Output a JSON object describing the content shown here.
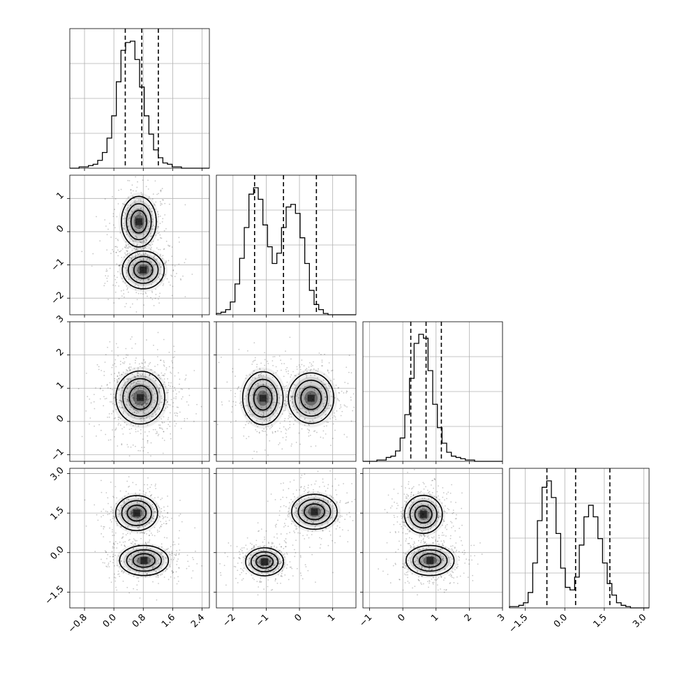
{
  "chart_data": {
    "type": "corner",
    "parameters": [
      {
        "ticks": [
          "−0.8",
          "0.0",
          "0.8",
          "1.6",
          "2.4"
        ],
        "tick_values": [
          -0.8,
          0.0,
          0.8,
          1.6,
          2.4
        ],
        "range": [
          -1.2,
          2.6
        ]
      },
      {
        "ticks": [
          "−2",
          "−1",
          "0",
          "1"
        ],
        "tick_values": [
          -2,
          -1,
          0,
          1
        ],
        "range": [
          -2.5,
          1.7
        ]
      },
      {
        "ticks": [
          "−1",
          "0",
          "1",
          "2",
          "3"
        ],
        "tick_values": [
          -1,
          0,
          1,
          2,
          3
        ],
        "range": [
          -1.2,
          3.0
        ]
      },
      {
        "ticks": [
          "−1.5",
          "0.0",
          "1.5",
          "3.0"
        ],
        "tick_values": [
          -1.5,
          0.0,
          1.5,
          3.0
        ],
        "range": [
          -2.1,
          3.2
        ]
      }
    ],
    "quantiles": [
      [
        0.31,
        0.76,
        1.21
      ],
      [
        -1.35,
        -0.48,
        0.51
      ],
      [
        0.24,
        0.7,
        1.16
      ],
      [
        -0.68,
        0.41,
        1.71
      ]
    ],
    "histograms": [
      {
        "counts": [
          0,
          0,
          1,
          1,
          2,
          3,
          6,
          12,
          23,
          40,
          66,
          90,
          96,
          97,
          83,
          62,
          40,
          26,
          14,
          8,
          4,
          3,
          1,
          1,
          0,
          0,
          0,
          0,
          0,
          0
        ]
      },
      {
        "counts": [
          1,
          2,
          4,
          10,
          24,
          44,
          68,
          94,
          99,
          90,
          70,
          53,
          40,
          48,
          68,
          84,
          86,
          79,
          60,
          40,
          19,
          8,
          4,
          1,
          0,
          0,
          0,
          0,
          0,
          0
        ]
      },
      {
        "counts": [
          0,
          0,
          0,
          1,
          1,
          3,
          4,
          8,
          18,
          36,
          64,
          91,
          98,
          95,
          70,
          44,
          26,
          14,
          7,
          4,
          3,
          2,
          1,
          1,
          0,
          0,
          0,
          0,
          0,
          0
        ]
      },
      {
        "counts": [
          1,
          1,
          2,
          4,
          12,
          35,
          68,
          94,
          99,
          86,
          58,
          31,
          16,
          14,
          24,
          49,
          71,
          80,
          71,
          54,
          35,
          19,
          10,
          4,
          2,
          1,
          0,
          0,
          0,
          0
        ]
      }
    ],
    "grid": true,
    "legend": "none"
  }
}
